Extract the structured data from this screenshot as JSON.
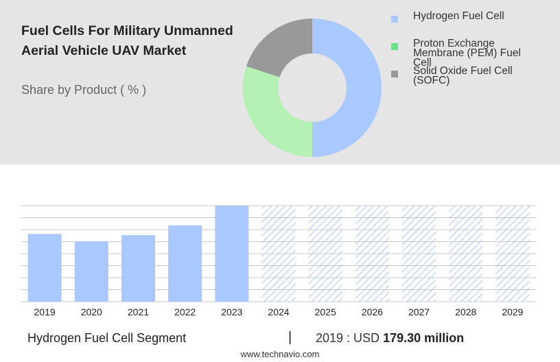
{
  "title": "Fuel Cells For Military Unmanned Aerial Vehicle UAV Market",
  "subtitle": "Share by Product ( % )",
  "donut": {
    "segments": [
      {
        "label": "Hydrogen Fuel Cell",
        "value": 50,
        "color": "#a9c8ff"
      },
      {
        "label": "Proton Exchange Membrane (PEM) Fuel Cell",
        "value": 30,
        "color": "#b5f0b5"
      },
      {
        "label": "Solid Oxide Fuel Cell (SOFC)",
        "value": 20,
        "color": "#999999"
      }
    ]
  },
  "legend": [
    {
      "label": "Hydrogen Fuel Cell",
      "color": "#a9c8ff"
    },
    {
      "label": "Proton Exchange Membrane (PEM) Fuel Cell",
      "color": "#6de08a"
    },
    {
      "label": "Solid Oxide Fuel Cell (SOFC)",
      "color": "#999999"
    }
  ],
  "chart_data": {
    "type": "bar",
    "categories": [
      "2019",
      "2020",
      "2021",
      "2022",
      "2023",
      "2024",
      "2025",
      "2026",
      "2027",
      "2028",
      "2029"
    ],
    "values": [
      179.3,
      160,
      176,
      202,
      254,
      null,
      null,
      null,
      null,
      null,
      null
    ],
    "forecast": [
      false,
      false,
      false,
      false,
      false,
      true,
      true,
      true,
      true,
      true,
      true
    ],
    "ylim": [
      0,
      254
    ],
    "grid": true,
    "bar_color": "#a9c8ff",
    "forecast_color": "#a9c8ff"
  },
  "footer": {
    "segment": "Hydrogen Fuel Cell Segment",
    "separator": "|",
    "value_prefix": "2019 : USD",
    "value_amount": "179.30 million",
    "source": "www.technavio.com"
  }
}
